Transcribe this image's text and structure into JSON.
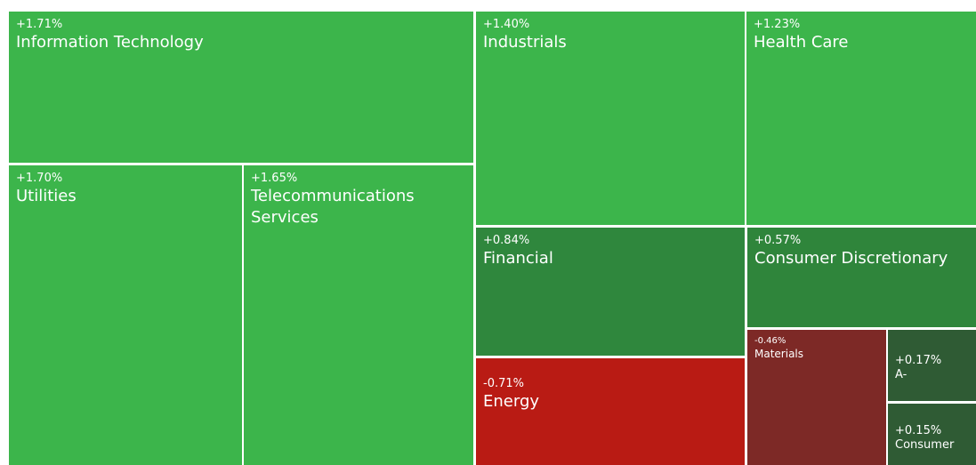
{
  "tiles": [
    {
      "change": "+1.71%",
      "label": "Information Technology",
      "color": "#3cb54b"
    },
    {
      "change": "+1.70%",
      "label": "Utilities",
      "color": "#3cb54b"
    },
    {
      "change": "+1.65%",
      "label": "Telecommunications Services",
      "color": "#3cb54b"
    },
    {
      "change": "+1.40%",
      "label": "Industrials",
      "color": "#3cb54b"
    },
    {
      "change": "+1.23%",
      "label": "Health Care",
      "color": "#3cb54b"
    },
    {
      "change": "+0.84%",
      "label": "Financial",
      "color": "#2f873d"
    },
    {
      "change": "-0.71%",
      "label": "Energy",
      "color": "#b91b14"
    },
    {
      "change": "+0.57%",
      "label": "Consumer Discretionary",
      "color": "#2f853b"
    },
    {
      "change": "-0.46%",
      "label": "Materials",
      "color": "#7d2926"
    },
    {
      "change": "+0.17%",
      "label": "A-",
      "color": "#2f5b34"
    },
    {
      "change": "+0.15%",
      "label": "Consumer",
      "color": "#2f5b34"
    }
  ]
}
